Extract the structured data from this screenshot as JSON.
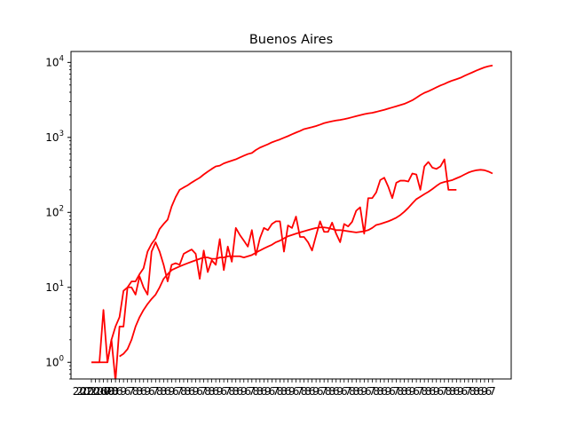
{
  "chart_data": {
    "type": "line",
    "title": "Buenos Aires",
    "xlabel": "",
    "ylabel": "",
    "yscale": "log",
    "ylim": [
      0.6,
      14000
    ],
    "y_ticks": [
      {
        "value": 1,
        "base": "10",
        "exp": "0"
      },
      {
        "value": 10,
        "base": "10",
        "exp": "1"
      },
      {
        "value": 100,
        "base": "10",
        "exp": "2"
      },
      {
        "value": 1000,
        "base": "10",
        "exp": "3"
      },
      {
        "value": 10000,
        "base": "10",
        "exp": "4"
      }
    ],
    "x_tick_labels_legible": [
      "2020-0",
      "2020-0",
      "2020-0",
      "8",
      "6",
      "9",
      "6",
      "7",
      "8"
    ],
    "grid": false,
    "legend": "none",
    "line_color": "#ff0000",
    "series": [
      {
        "x": [
          0,
          1,
          2,
          3,
          4,
          5,
          6,
          7,
          8,
          9,
          10,
          11,
          12,
          13,
          14,
          15,
          16,
          17,
          18,
          19,
          20,
          21,
          22,
          23,
          24,
          25,
          26,
          27,
          28,
          29,
          30,
          31,
          32,
          33,
          34,
          35,
          36,
          37,
          38,
          39,
          40,
          41,
          42,
          43,
          44,
          45,
          46,
          47,
          48,
          49,
          50,
          51,
          52,
          53,
          54,
          55,
          56,
          57,
          58,
          59,
          60,
          61,
          62,
          63,
          64,
          65,
          66,
          67,
          68,
          69,
          70,
          71,
          72,
          73,
          74,
          75,
          76,
          77,
          78,
          79,
          80,
          81,
          82,
          83,
          84,
          85,
          86,
          87,
          88,
          89,
          90,
          91,
          92,
          93,
          94,
          95,
          96,
          97,
          98,
          99,
          100
        ],
        "values": [
          1,
          1,
          1,
          1,
          1,
          2,
          3,
          4,
          9,
          10,
          12,
          12,
          15,
          18,
          30,
          38,
          45,
          60,
          70,
          80,
          120,
          160,
          200,
          215,
          230,
          250,
          270,
          290,
          320,
          350,
          380,
          410,
          420,
          450,
          470,
          490,
          510,
          540,
          570,
          600,
          620,
          680,
          730,
          770,
          810,
          860,
          900,
          940,
          990,
          1040,
          1100,
          1160,
          1220,
          1290,
          1330,
          1370,
          1420,
          1480,
          1550,
          1600,
          1640,
          1680,
          1710,
          1750,
          1800,
          1860,
          1920,
          1980,
          2040,
          2090,
          2130,
          2190,
          2260,
          2330,
          2420,
          2510,
          2600,
          2700,
          2800,
          2960,
          3130,
          3380,
          3670,
          3930,
          4130,
          4380,
          4650,
          4930,
          5170,
          5470,
          5740,
          5980,
          6240,
          6620,
          7000,
          7380,
          7800,
          8200,
          8600,
          8900,
          9100
        ]
      },
      {
        "x": [
          0,
          1,
          2,
          3,
          4,
          5,
          6,
          7,
          8,
          9,
          10,
          11,
          12,
          13,
          14,
          15,
          16,
          17,
          18,
          19,
          20,
          21,
          22,
          23,
          24,
          25,
          26,
          27,
          28,
          29,
          30,
          31,
          32,
          33,
          34,
          35,
          36,
          37,
          38,
          39,
          40,
          41,
          42,
          43,
          44,
          45,
          46,
          47,
          48,
          49,
          50,
          51,
          52,
          53,
          54,
          55,
          56,
          57,
          58,
          59,
          60,
          61,
          62,
          63,
          64,
          65,
          66,
          67,
          68,
          69,
          70,
          71,
          72,
          73,
          74,
          75,
          76,
          77,
          78,
          79,
          80,
          81,
          82,
          83,
          84,
          85,
          86,
          87,
          88,
          89,
          90,
          91,
          92,
          93,
          94,
          95,
          96,
          97,
          98,
          99
        ],
        "values": [
          1,
          1,
          1,
          5,
          1,
          2,
          0.5,
          3,
          3,
          10,
          10,
          8,
          14,
          10,
          8,
          30,
          40,
          30,
          20,
          12,
          20,
          21,
          20,
          28,
          30,
          32,
          28,
          13,
          31,
          16,
          23,
          20,
          44,
          17,
          35,
          22,
          62,
          50,
          42,
          35,
          58,
          27,
          45,
          62,
          58,
          70,
          76,
          76,
          30,
          67,
          62,
          88,
          47,
          47,
          40,
          31,
          49,
          76,
          55,
          55,
          73,
          52,
          40,
          70,
          65,
          75,
          105,
          117,
          52,
          155,
          155,
          185,
          270,
          290,
          220,
          155,
          248,
          265,
          265,
          258,
          330,
          320,
          200,
          410,
          470,
          395,
          380,
          410,
          510,
          200,
          200,
          200,
          null,
          null,
          null,
          null,
          null,
          null,
          null,
          null
        ]
      },
      {
        "x": [
          7,
          8,
          9,
          10,
          11,
          12,
          13,
          14,
          15,
          16,
          17,
          18,
          19,
          20,
          21,
          22,
          23,
          24,
          25,
          26,
          27,
          28,
          29,
          30,
          31,
          32,
          33,
          34,
          35,
          36,
          37,
          38,
          39,
          40,
          41,
          42,
          43,
          44,
          45,
          46,
          47,
          48,
          49,
          50,
          51,
          52,
          53,
          54,
          55,
          56,
          57,
          58,
          59,
          60,
          61,
          62,
          63,
          64,
          65,
          66,
          67,
          68,
          69,
          70,
          71,
          72,
          73,
          74,
          75,
          76,
          77,
          78,
          79,
          80,
          81,
          82,
          83,
          84,
          85,
          86,
          87,
          88,
          89,
          90,
          91,
          92,
          93,
          94,
          95,
          96,
          97,
          98,
          99,
          100
        ],
        "values": [
          1.2,
          1.3,
          1.5,
          2,
          3,
          4,
          5,
          6,
          7,
          8,
          10,
          13,
          15,
          17,
          18,
          19,
          20,
          21,
          22,
          23,
          24,
          25,
          25,
          24,
          24,
          25,
          25,
          26,
          26,
          26,
          26,
          25,
          26,
          27,
          29,
          31,
          33,
          35,
          37,
          40,
          42,
          45,
          48,
          50,
          52,
          54,
          56,
          58,
          60,
          62,
          63,
          63,
          62,
          60,
          58,
          58,
          57,
          56,
          55,
          54,
          55,
          56,
          58,
          62,
          68,
          70,
          73,
          76,
          80,
          85,
          92,
          102,
          115,
          132,
          150,
          162,
          175,
          188,
          205,
          225,
          245,
          255,
          262,
          270,
          285,
          300,
          320,
          340,
          355,
          365,
          370,
          365,
          350,
          330
        ]
      }
    ]
  }
}
